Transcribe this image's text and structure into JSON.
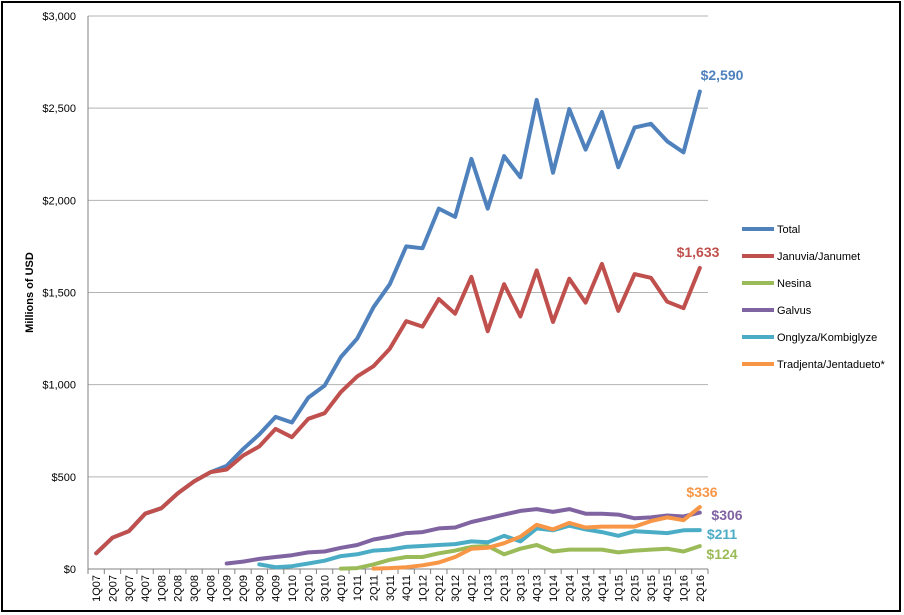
{
  "chart_data": {
    "type": "line",
    "ylabel": "Millions of USD",
    "ylim": [
      0,
      3000
    ],
    "yticks": [
      {
        "value": 0,
        "label": "$0"
      },
      {
        "value": 500,
        "label": "$500"
      },
      {
        "value": 1000,
        "label": "$1,000"
      },
      {
        "value": 1500,
        "label": "$1,500"
      },
      {
        "value": 2000,
        "label": "$2,000"
      },
      {
        "value": 2500,
        "label": "$2,500"
      },
      {
        "value": 3000,
        "label": "$3,000"
      }
    ],
    "grid": "horizontal",
    "legend_position": "right",
    "categories": [
      "1Q07",
      "2Q07",
      "3Q07",
      "4Q07",
      "1Q08",
      "2Q08",
      "3Q08",
      "4Q08",
      "1Q09",
      "2Q09",
      "3Q09",
      "4Q09",
      "1Q10",
      "2Q10",
      "3Q10",
      "4Q10",
      "1Q11",
      "2Q11",
      "3Q11",
      "4Q11",
      "1Q12",
      "2Q12",
      "3Q12",
      "4Q12",
      "1Q13",
      "2Q13",
      "3Q13",
      "4Q13",
      "1Q14",
      "2Q14",
      "3Q14",
      "4Q14",
      "1Q15",
      "2Q15",
      "3Q15",
      "4Q15",
      "1Q16",
      "2Q16"
    ],
    "series": [
      {
        "name": "Total",
        "color": "#4f81bd",
        "end_label": "$2,590",
        "values": [
          null,
          null,
          null,
          null,
          null,
          null,
          null,
          null,
          null,
          null,
          null,
          null,
          null,
          null,
          null,
          null,
          null,
          null,
          null,
          null,
          null,
          null,
          null,
          null,
          null,
          null,
          null,
          null,
          null,
          null,
          null,
          null,
          null,
          null,
          null,
          null,
          null,
          null
        ],
        "points": [
          [
            0,
            85
          ],
          [
            1,
            170
          ],
          [
            2,
            205
          ],
          [
            3,
            300
          ],
          [
            4,
            330
          ],
          [
            5,
            410
          ],
          [
            6,
            475
          ],
          [
            7,
            525
          ],
          [
            8,
            560
          ],
          [
            9,
            650
          ],
          [
            10,
            730
          ],
          [
            11,
            825
          ],
          [
            12,
            795
          ],
          [
            13,
            930
          ],
          [
            14,
            995
          ],
          [
            15,
            1150
          ],
          [
            16,
            1250
          ],
          [
            17,
            1420
          ],
          [
            18,
            1545
          ],
          [
            19,
            1750
          ],
          [
            20,
            1740
          ],
          [
            21,
            1955
          ],
          [
            22,
            1910
          ],
          [
            23,
            2225
          ],
          [
            24,
            1955
          ],
          [
            25,
            2240
          ],
          [
            26,
            2125
          ],
          [
            27,
            2545
          ],
          [
            28,
            2150
          ],
          [
            29,
            2495
          ],
          [
            30,
            2275
          ],
          [
            31,
            2480
          ],
          [
            32,
            2180
          ],
          [
            33,
            2395
          ],
          [
            34,
            2415
          ],
          [
            35,
            2320
          ],
          [
            36,
            2260
          ],
          [
            37,
            2590
          ]
        ]
      },
      {
        "name": "Januvia/Janumet",
        "color": "#c0504d",
        "end_label": "$1,633",
        "points": [
          [
            0,
            85
          ],
          [
            1,
            170
          ],
          [
            2,
            205
          ],
          [
            3,
            300
          ],
          [
            4,
            330
          ],
          [
            5,
            410
          ],
          [
            6,
            475
          ],
          [
            7,
            525
          ],
          [
            8,
            540
          ],
          [
            9,
            615
          ],
          [
            10,
            665
          ],
          [
            11,
            760
          ],
          [
            12,
            715
          ],
          [
            13,
            815
          ],
          [
            14,
            845
          ],
          [
            15,
            960
          ],
          [
            16,
            1045
          ],
          [
            17,
            1100
          ],
          [
            18,
            1195
          ],
          [
            19,
            1345
          ],
          [
            20,
            1315
          ],
          [
            21,
            1465
          ],
          [
            22,
            1385
          ],
          [
            23,
            1585
          ],
          [
            24,
            1290
          ],
          [
            25,
            1545
          ],
          [
            26,
            1370
          ],
          [
            27,
            1620
          ],
          [
            28,
            1340
          ],
          [
            29,
            1575
          ],
          [
            30,
            1445
          ],
          [
            31,
            1655
          ],
          [
            32,
            1400
          ],
          [
            33,
            1600
          ],
          [
            34,
            1580
          ],
          [
            35,
            1450
          ],
          [
            36,
            1415
          ],
          [
            37,
            1633
          ]
        ]
      },
      {
        "name": "Nesina",
        "color": "#9bbb59",
        "end_label": "$124",
        "points": [
          [
            15,
            2
          ],
          [
            16,
            5
          ],
          [
            17,
            25
          ],
          [
            18,
            50
          ],
          [
            19,
            65
          ],
          [
            20,
            65
          ],
          [
            21,
            85
          ],
          [
            22,
            100
          ],
          [
            23,
            120
          ],
          [
            24,
            125
          ],
          [
            25,
            80
          ],
          [
            26,
            110
          ],
          [
            27,
            130
          ],
          [
            28,
            95
          ],
          [
            29,
            105
          ],
          [
            30,
            105
          ],
          [
            31,
            105
          ],
          [
            32,
            90
          ],
          [
            33,
            100
          ],
          [
            34,
            105
          ],
          [
            35,
            110
          ],
          [
            36,
            95
          ],
          [
            37,
            124
          ]
        ]
      },
      {
        "name": "Galvus",
        "color": "#8064a2",
        "end_label": "$306",
        "points": [
          [
            8,
            30
          ],
          [
            9,
            40
          ],
          [
            10,
            55
          ],
          [
            11,
            65
          ],
          [
            12,
            75
          ],
          [
            13,
            90
          ],
          [
            14,
            95
          ],
          [
            15,
            115
          ],
          [
            16,
            130
          ],
          [
            17,
            160
          ],
          [
            18,
            175
          ],
          [
            19,
            195
          ],
          [
            20,
            200
          ],
          [
            21,
            220
          ],
          [
            22,
            225
          ],
          [
            23,
            255
          ],
          [
            24,
            275
          ],
          [
            25,
            295
          ],
          [
            26,
            315
          ],
          [
            27,
            325
          ],
          [
            28,
            310
          ],
          [
            29,
            325
          ],
          [
            30,
            300
          ],
          [
            31,
            300
          ],
          [
            32,
            295
          ],
          [
            33,
            275
          ],
          [
            34,
            280
          ],
          [
            35,
            290
          ],
          [
            36,
            285
          ],
          [
            37,
            306
          ]
        ]
      },
      {
        "name": "Onglyza/Kombiglyze",
        "color": "#4bacc6",
        "end_label": "$211",
        "points": [
          [
            10,
            25
          ],
          [
            11,
            10
          ],
          [
            12,
            15
          ],
          [
            13,
            30
          ],
          [
            14,
            45
          ],
          [
            15,
            70
          ],
          [
            16,
            80
          ],
          [
            17,
            100
          ],
          [
            18,
            105
          ],
          [
            19,
            120
          ],
          [
            20,
            125
          ],
          [
            21,
            130
          ],
          [
            22,
            135
          ],
          [
            23,
            150
          ],
          [
            24,
            145
          ],
          [
            25,
            180
          ],
          [
            26,
            150
          ],
          [
            27,
            220
          ],
          [
            28,
            210
          ],
          [
            29,
            235
          ],
          [
            30,
            215
          ],
          [
            31,
            200
          ],
          [
            32,
            180
          ],
          [
            33,
            205
          ],
          [
            34,
            200
          ],
          [
            35,
            195
          ],
          [
            36,
            210
          ],
          [
            37,
            211
          ]
        ]
      },
      {
        "name": "Tradjenta/Jentadueto*",
        "color": "#f79646",
        "end_label": "$336",
        "points": [
          [
            17,
            2
          ],
          [
            18,
            5
          ],
          [
            19,
            10
          ],
          [
            20,
            20
          ],
          [
            21,
            35
          ],
          [
            22,
            65
          ],
          [
            23,
            110
          ],
          [
            24,
            115
          ],
          [
            25,
            140
          ],
          [
            26,
            175
          ],
          [
            27,
            240
          ],
          [
            28,
            215
          ],
          [
            29,
            250
          ],
          [
            30,
            225
          ],
          [
            31,
            230
          ],
          [
            32,
            230
          ],
          [
            33,
            230
          ],
          [
            34,
            260
          ],
          [
            35,
            280
          ],
          [
            36,
            265
          ],
          [
            37,
            336
          ]
        ]
      }
    ]
  }
}
